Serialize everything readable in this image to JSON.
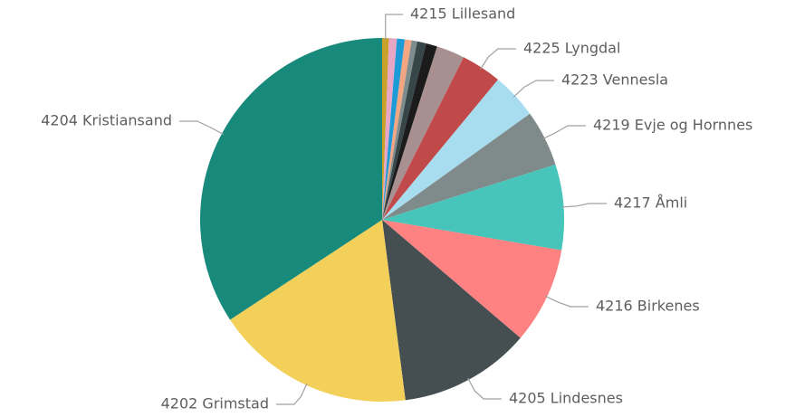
{
  "chart_data": {
    "type": "pie",
    "categories": [
      "4215 Lillesand",
      null,
      null,
      null,
      null,
      null,
      null,
      null,
      "4225 Lyngdal",
      "4223 Vennesla",
      "4219 Evje og Hornnes",
      "4217 Åmli",
      "4216 Birkenes",
      "4205 Lindesnes",
      "4202 Grimstad",
      "4204 Kristiansand"
    ],
    "values": [
      0.6,
      0.7,
      0.7,
      0.6,
      0.5,
      0.8,
      1.0,
      2.5,
      3.6,
      4.1,
      5.0,
      7.6,
      8.6,
      11.7,
      17.8,
      34.3
    ],
    "colors": [
      "#c8a22a",
      "#e8a6c6",
      "#1e9bd7",
      "#f4a582",
      "#7f8c8d",
      "#374649",
      "#1b1b1b",
      "#a89090",
      "#c04a4a",
      "#a8dcef",
      "#7f8a8a",
      "#47c5bb",
      "#fd8281",
      "#454f51",
      "#f2d05a",
      "#178a7c"
    ]
  }
}
